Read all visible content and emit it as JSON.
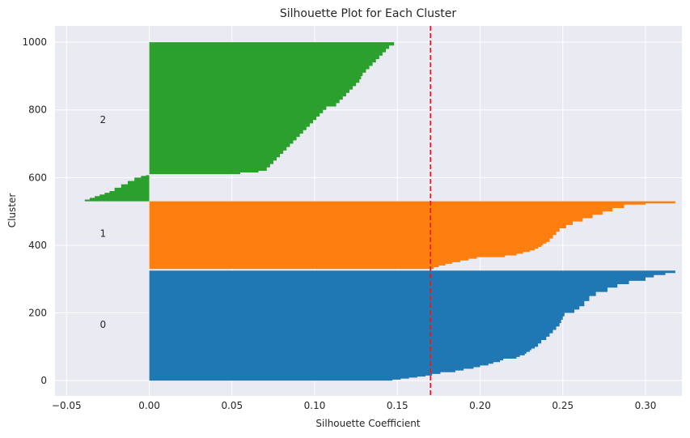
{
  "chart_data": {
    "type": "area",
    "title": "Silhouette Plot for Each Cluster",
    "xlabel": "Silhouette Coefficient",
    "ylabel": "Cluster",
    "xlim": [
      -0.057,
      0.322
    ],
    "ylim": [
      -45,
      1048
    ],
    "xticks": [
      -0.05,
      0.0,
      0.05,
      0.1,
      0.15,
      0.2,
      0.25,
      0.3
    ],
    "xtick_labels": [
      "−0.05",
      "0.00",
      "0.05",
      "0.10",
      "0.15",
      "0.20",
      "0.25",
      "0.30"
    ],
    "yticks": [
      0,
      200,
      400,
      600,
      800,
      1000
    ],
    "ytick_labels": [
      "0",
      "200",
      "400",
      "600",
      "800",
      "1000"
    ],
    "grid": true,
    "background": "#eaeaf2",
    "average_line": {
      "x": 0.17,
      "color": "#e41a1c",
      "style": "dashed"
    },
    "clusters": [
      {
        "label": "0",
        "label_x": -0.028,
        "label_y": 165,
        "color": "#1f77b4",
        "y_start": 0,
        "y_end": 325,
        "profile": [
          [
            0,
            0.147
          ],
          [
            3,
            0.152
          ],
          [
            6,
            0.157
          ],
          [
            9,
            0.162
          ],
          [
            12,
            0.167
          ],
          [
            15,
            0.171
          ],
          [
            20,
            0.176
          ],
          [
            25,
            0.185
          ],
          [
            30,
            0.19
          ],
          [
            35,
            0.196
          ],
          [
            40,
            0.2
          ],
          [
            45,
            0.205
          ],
          [
            50,
            0.208
          ],
          [
            55,
            0.212
          ],
          [
            60,
            0.214
          ],
          [
            65,
            0.222
          ],
          [
            70,
            0.224
          ],
          [
            75,
            0.227
          ],
          [
            80,
            0.228
          ],
          [
            85,
            0.23
          ],
          [
            90,
            0.231
          ],
          [
            95,
            0.233
          ],
          [
            100,
            0.235
          ],
          [
            110,
            0.237
          ],
          [
            120,
            0.24
          ],
          [
            130,
            0.242
          ],
          [
            140,
            0.244
          ],
          [
            150,
            0.246
          ],
          [
            160,
            0.248
          ],
          [
            170,
            0.249
          ],
          [
            180,
            0.25
          ],
          [
            190,
            0.251
          ],
          [
            200,
            0.257
          ],
          [
            210,
            0.26
          ],
          [
            220,
            0.263
          ],
          [
            235,
            0.266
          ],
          [
            250,
            0.27
          ],
          [
            262,
            0.277
          ],
          [
            275,
            0.283
          ],
          [
            285,
            0.29
          ],
          [
            295,
            0.3
          ],
          [
            305,
            0.305
          ],
          [
            312,
            0.312
          ],
          [
            318,
            0.318
          ],
          [
            325,
            0.318
          ]
        ]
      },
      {
        "label": "1",
        "label_x": -0.028,
        "label_y": 435,
        "color": "#ff7f0e",
        "y_start": 330,
        "y_end": 530,
        "profile": [
          [
            330,
            0.172
          ],
          [
            335,
            0.175
          ],
          [
            340,
            0.179
          ],
          [
            345,
            0.183
          ],
          [
            350,
            0.188
          ],
          [
            355,
            0.193
          ],
          [
            360,
            0.198
          ],
          [
            365,
            0.215
          ],
          [
            370,
            0.222
          ],
          [
            375,
            0.226
          ],
          [
            380,
            0.23
          ],
          [
            385,
            0.233
          ],
          [
            390,
            0.235
          ],
          [
            395,
            0.237
          ],
          [
            400,
            0.238
          ],
          [
            405,
            0.24
          ],
          [
            410,
            0.242
          ],
          [
            420,
            0.244
          ],
          [
            430,
            0.246
          ],
          [
            440,
            0.248
          ],
          [
            450,
            0.252
          ],
          [
            460,
            0.256
          ],
          [
            470,
            0.262
          ],
          [
            480,
            0.268
          ],
          [
            490,
            0.274
          ],
          [
            500,
            0.28
          ],
          [
            510,
            0.287
          ],
          [
            520,
            0.3
          ],
          [
            524,
            0.318
          ],
          [
            530,
            0.318
          ]
        ]
      },
      {
        "label": "2",
        "label_x": -0.028,
        "label_y": 770,
        "color": "#2ca02c",
        "y_start": 530,
        "y_end": 1000,
        "profile": [
          [
            530,
            -0.039
          ],
          [
            535,
            -0.036
          ],
          [
            540,
            -0.033
          ],
          [
            545,
            -0.03
          ],
          [
            550,
            -0.027
          ],
          [
            555,
            -0.024
          ],
          [
            560,
            -0.021
          ],
          [
            570,
            -0.017
          ],
          [
            580,
            -0.013
          ],
          [
            590,
            -0.009
          ],
          [
            600,
            -0.005
          ],
          [
            605,
            -0.002
          ],
          [
            607,
            0.0
          ],
          [
            610,
            0.055
          ],
          [
            615,
            0.066
          ],
          [
            620,
            0.071
          ],
          [
            630,
            0.073
          ],
          [
            640,
            0.075
          ],
          [
            650,
            0.077
          ],
          [
            660,
            0.079
          ],
          [
            670,
            0.081
          ],
          [
            680,
            0.083
          ],
          [
            690,
            0.085
          ],
          [
            700,
            0.087
          ],
          [
            710,
            0.089
          ],
          [
            720,
            0.091
          ],
          [
            730,
            0.093
          ],
          [
            740,
            0.095
          ],
          [
            750,
            0.097
          ],
          [
            760,
            0.099
          ],
          [
            770,
            0.101
          ],
          [
            780,
            0.103
          ],
          [
            790,
            0.105
          ],
          [
            800,
            0.107
          ],
          [
            810,
            0.113
          ],
          [
            820,
            0.115
          ],
          [
            830,
            0.117
          ],
          [
            840,
            0.119
          ],
          [
            850,
            0.121
          ],
          [
            860,
            0.123
          ],
          [
            870,
            0.125
          ],
          [
            880,
            0.127
          ],
          [
            890,
            0.128
          ],
          [
            900,
            0.129
          ],
          [
            910,
            0.131
          ],
          [
            920,
            0.133
          ],
          [
            930,
            0.135
          ],
          [
            940,
            0.137
          ],
          [
            950,
            0.139
          ],
          [
            960,
            0.141
          ],
          [
            970,
            0.143
          ],
          [
            980,
            0.145
          ],
          [
            990,
            0.148
          ],
          [
            1000,
            0.15
          ]
        ]
      }
    ]
  }
}
